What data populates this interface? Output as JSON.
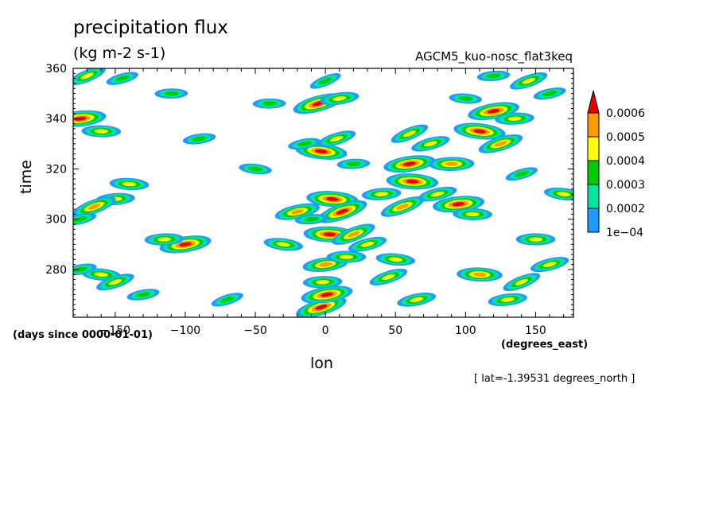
{
  "title": "precipitation flux",
  "units": "(kg m-2 s-1)",
  "dataset": "AGCM5_kuo-nosc_flat3keq",
  "slice_label": "[ lat=-1.39531 degrees_north ]",
  "chart_data": {
    "type": "heatmap",
    "title": "precipitation flux",
    "xlabel": "lon",
    "ylabel": "time",
    "xunits": "(degrees_east)",
    "yunits": "(days since 0000-01-01)",
    "xlim": [
      -180,
      177
    ],
    "ylim": [
      261,
      360
    ],
    "xticks": [
      -150,
      -100,
      -50,
      0,
      50,
      100,
      150
    ],
    "yticks": [
      280,
      300,
      320,
      340,
      360
    ],
    "legend": {
      "placement": "right",
      "levels": [
        "1e-04",
        "0.0002",
        "0.0003",
        "0.0004",
        "0.0005",
        "0.0006"
      ],
      "colors": [
        "#1e9bff",
        "#00e6a0",
        "#00cc00",
        "#ffff00",
        "#ff9900",
        "#e60000"
      ]
    },
    "features": [
      {
        "lon": 0,
        "time": 355,
        "peak": 0.0003
      },
      {
        "lon": -5,
        "time": 346,
        "peak": 0.0006
      },
      {
        "lon": 10,
        "time": 348,
        "peak": 0.0004
      },
      {
        "lon": -40,
        "time": 346,
        "peak": 0.0003
      },
      {
        "lon": -3,
        "time": 327,
        "peak": 0.0007
      },
      {
        "lon": 8,
        "time": 332,
        "peak": 0.0004
      },
      {
        "lon": -15,
        "time": 330,
        "peak": 0.0003
      },
      {
        "lon": 20,
        "time": 322,
        "peak": 0.0003
      },
      {
        "lon": 5,
        "time": 308,
        "peak": 0.0007
      },
      {
        "lon": 12,
        "time": 303,
        "peak": 0.0006
      },
      {
        "lon": -20,
        "time": 303,
        "peak": 0.0005
      },
      {
        "lon": -10,
        "time": 300,
        "peak": 0.0003
      },
      {
        "lon": 3,
        "time": 294,
        "peak": 0.0006
      },
      {
        "lon": 20,
        "time": 294,
        "peak": 0.0005
      },
      {
        "lon": 30,
        "time": 290,
        "peak": 0.0004
      },
      {
        "lon": 0,
        "time": 282,
        "peak": 0.0005
      },
      {
        "lon": 15,
        "time": 285,
        "peak": 0.0004
      },
      {
        "lon": -30,
        "time": 290,
        "peak": 0.0004
      },
      {
        "lon": -3,
        "time": 265,
        "peak": 0.0007
      },
      {
        "lon": 1,
        "time": 270,
        "peak": 0.0006
      },
      {
        "lon": -2,
        "time": 275,
        "peak": 0.0004
      },
      {
        "lon": 50,
        "time": 284,
        "peak": 0.0004
      },
      {
        "lon": 45,
        "time": 277,
        "peak": 0.0004
      },
      {
        "lon": 65,
        "time": 268,
        "peak": 0.0004
      },
      {
        "lon": 40,
        "time": 310,
        "peak": 0.0004
      },
      {
        "lon": 62,
        "time": 315,
        "peak": 0.0006
      },
      {
        "lon": 55,
        "time": 305,
        "peak": 0.0005
      },
      {
        "lon": 80,
        "time": 310,
        "peak": 0.0004
      },
      {
        "lon": 95,
        "time": 306,
        "peak": 0.0006
      },
      {
        "lon": 105,
        "time": 302,
        "peak": 0.0004
      },
      {
        "lon": 60,
        "time": 334,
        "peak": 0.0004
      },
      {
        "lon": 75,
        "time": 330,
        "peak": 0.0004
      },
      {
        "lon": 60,
        "time": 322,
        "peak": 0.0006
      },
      {
        "lon": 90,
        "time": 322,
        "peak": 0.0005
      },
      {
        "lon": 110,
        "time": 335,
        "peak": 0.0006
      },
      {
        "lon": 125,
        "time": 330,
        "peak": 0.0005
      },
      {
        "lon": 120,
        "time": 343,
        "peak": 0.0006
      },
      {
        "lon": 135,
        "time": 340,
        "peak": 0.0004
      },
      {
        "lon": 100,
        "time": 348,
        "peak": 0.0003
      },
      {
        "lon": 145,
        "time": 355,
        "peak": 0.0004
      },
      {
        "lon": 160,
        "time": 350,
        "peak": 0.0003
      },
      {
        "lon": 120,
        "time": 357,
        "peak": 0.0003
      },
      {
        "lon": 110,
        "time": 278,
        "peak": 0.0005
      },
      {
        "lon": 140,
        "time": 275,
        "peak": 0.0004
      },
      {
        "lon": 160,
        "time": 282,
        "peak": 0.0004
      },
      {
        "lon": 130,
        "time": 268,
        "peak": 0.0004
      },
      {
        "lon": 150,
        "time": 292,
        "peak": 0.0004
      },
      {
        "lon": 170,
        "time": 310,
        "peak": 0.0004
      },
      {
        "lon": 140,
        "time": 318,
        "peak": 0.0003
      },
      {
        "lon": -100,
        "time": 290,
        "peak": 0.0006
      },
      {
        "lon": -115,
        "time": 292,
        "peak": 0.0004
      },
      {
        "lon": -160,
        "time": 278,
        "peak": 0.0004
      },
      {
        "lon": -150,
        "time": 275,
        "peak": 0.0004
      },
      {
        "lon": -175,
        "time": 280,
        "peak": 0.0003
      },
      {
        "lon": -150,
        "time": 308,
        "peak": 0.0004
      },
      {
        "lon": -140,
        "time": 314,
        "peak": 0.0004
      },
      {
        "lon": -165,
        "time": 305,
        "peak": 0.0005
      },
      {
        "lon": -175,
        "time": 300,
        "peak": 0.0003
      },
      {
        "lon": -175,
        "time": 340,
        "peak": 0.0006
      },
      {
        "lon": -160,
        "time": 335,
        "peak": 0.0004
      },
      {
        "lon": -170,
        "time": 357,
        "peak": 0.0004
      },
      {
        "lon": -145,
        "time": 356,
        "peak": 0.0003
      },
      {
        "lon": -90,
        "time": 332,
        "peak": 0.0003
      },
      {
        "lon": -110,
        "time": 350,
        "peak": 0.0003
      },
      {
        "lon": -50,
        "time": 320,
        "peak": 0.0003
      },
      {
        "lon": -70,
        "time": 268,
        "peak": 0.0003
      },
      {
        "lon": -130,
        "time": 270,
        "peak": 0.0003
      }
    ]
  }
}
